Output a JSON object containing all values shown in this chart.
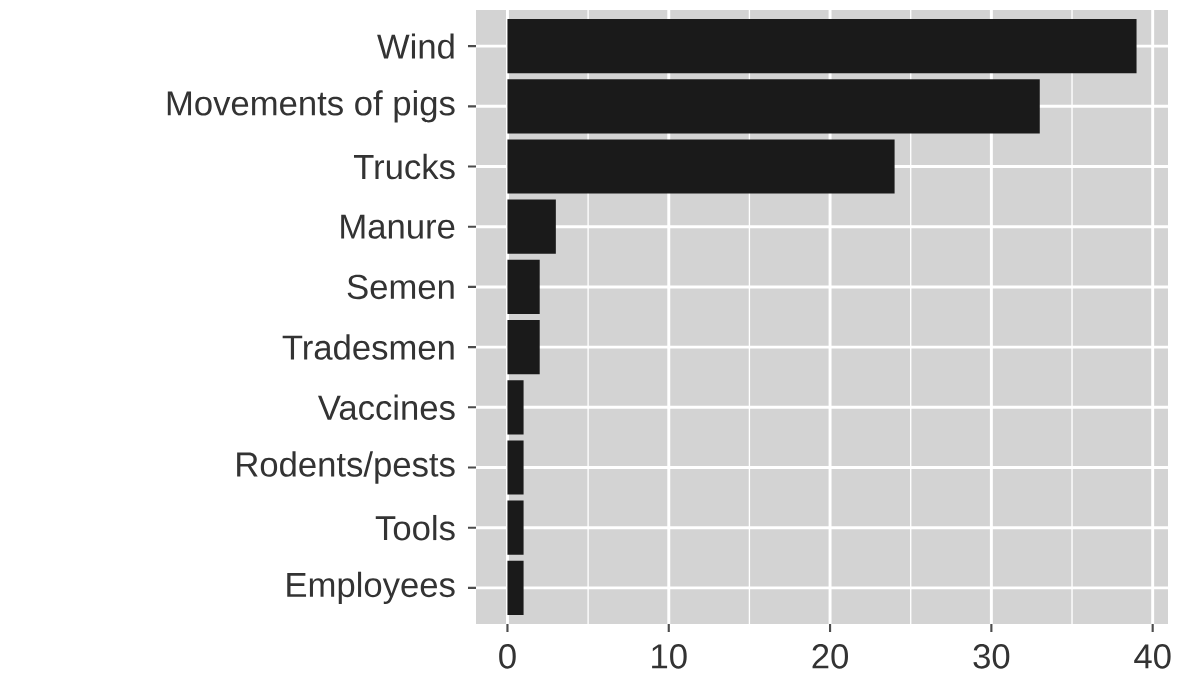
{
  "chart_data": {
    "type": "bar",
    "orientation": "horizontal",
    "categories": [
      "Wind",
      "Movements of pigs",
      "Trucks",
      "Manure",
      "Semen",
      "Tradesmen",
      "Vaccines",
      "Rodents/pests",
      "Tools",
      "Employees"
    ],
    "values": [
      39,
      33,
      24,
      3,
      2,
      2,
      1,
      1,
      1,
      1
    ],
    "color": "#1a1a1a",
    "xlim": [
      -1.95,
      40.95
    ],
    "xticks": [
      0,
      10,
      20,
      30,
      40
    ],
    "grid": true
  }
}
